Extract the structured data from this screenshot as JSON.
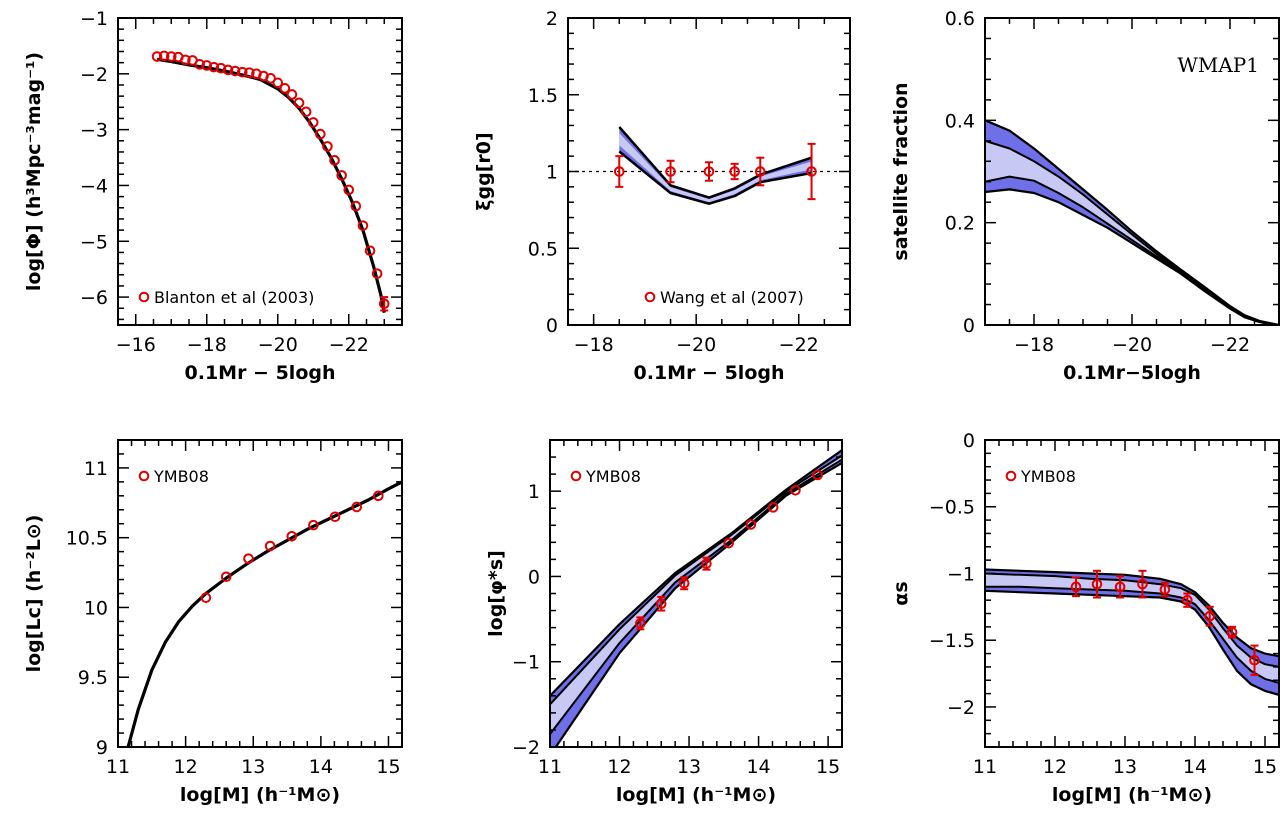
{
  "colors": {
    "band_outer": "#6f6fe8",
    "band_inner": "#c8c8f5",
    "curve": "#000000",
    "points": "#e00000"
  },
  "chart_data": [
    {
      "type": "line",
      "panel": "luminosity-function",
      "xlabel": "0.1Mr − 5logh",
      "ylabel": "log[Φ] (h³Mpc⁻³mag⁻¹)",
      "xlim": [
        -15.5,
        -23.5
      ],
      "ylim": [
        -6.5,
        -1
      ],
      "xticks": [
        -16,
        -18,
        -20,
        -22
      ],
      "xtick_labels": [
        "−16",
        "−18",
        "−20",
        "−22"
      ],
      "yticks": [
        -1,
        -2,
        -3,
        -4,
        -5,
        -6
      ],
      "ytick_labels": [
        "−1",
        "−2",
        "−3",
        "−4",
        "−5",
        "−6"
      ],
      "legend": "Blanton et al (2003)",
      "legend_position": "bottom-left",
      "model": {
        "x": [
          -16.6,
          -17.0,
          -17.5,
          -18.0,
          -18.5,
          -19.0,
          -19.5,
          -20.0,
          -20.3,
          -20.6,
          -20.9,
          -21.2,
          -21.5,
          -21.8,
          -22.1,
          -22.4,
          -22.7,
          -22.9,
          -23.0
        ],
        "y": [
          -1.74,
          -1.78,
          -1.84,
          -1.89,
          -1.95,
          -2.02,
          -2.1,
          -2.27,
          -2.42,
          -2.62,
          -2.87,
          -3.17,
          -3.5,
          -3.88,
          -4.3,
          -4.8,
          -5.45,
          -5.95,
          -6.28
        ]
      },
      "points": {
        "x": [
          -16.6,
          -16.8,
          -17.0,
          -17.2,
          -17.4,
          -17.6,
          -17.8,
          -18.0,
          -18.2,
          -18.4,
          -18.6,
          -18.8,
          -19.0,
          -19.2,
          -19.4,
          -19.6,
          -19.8,
          -20.0,
          -20.2,
          -20.4,
          -20.6,
          -20.8,
          -21.0,
          -21.2,
          -21.4,
          -21.6,
          -21.8,
          -22.0,
          -22.2,
          -22.4,
          -22.6,
          -22.8,
          -23.0
        ],
        "y": [
          -1.69,
          -1.68,
          -1.69,
          -1.7,
          -1.75,
          -1.76,
          -1.83,
          -1.85,
          -1.88,
          -1.9,
          -1.93,
          -1.95,
          -1.97,
          -1.98,
          -2.0,
          -2.04,
          -2.08,
          -2.16,
          -2.26,
          -2.37,
          -2.52,
          -2.68,
          -2.87,
          -3.08,
          -3.3,
          -3.55,
          -3.82,
          -4.08,
          -4.37,
          -4.72,
          -5.17,
          -5.58,
          -6.12
        ],
        "err": [
          0.03,
          0.03,
          0.03,
          0.03,
          0.03,
          0.03,
          0.03,
          0.03,
          0.03,
          0.03,
          0.03,
          0.03,
          0.03,
          0.03,
          0.03,
          0.03,
          0.03,
          0.03,
          0.03,
          0.03,
          0.03,
          0.03,
          0.03,
          0.03,
          0.03,
          0.03,
          0.03,
          0.04,
          0.04,
          0.05,
          0.06,
          0.08,
          0.12
        ]
      }
    },
    {
      "type": "line",
      "panel": "correlation-ratio",
      "xlabel": "0.1Mr − 5logh",
      "ylabel": "ξgg[r0]",
      "xlim": [
        -17.5,
        -23
      ],
      "ylim": [
        0,
        2
      ],
      "xticks": [
        -18,
        -20,
        -22
      ],
      "xtick_labels": [
        "−18",
        "−20",
        "−22"
      ],
      "yticks": [
        0,
        0.5,
        1,
        1.5,
        2
      ],
      "ytick_labels": [
        "0",
        "0.5",
        "1",
        "1.5",
        "2"
      ],
      "reference_line": 1,
      "legend": "Wang et al (2007)",
      "legend_position": "bottom-right",
      "band": {
        "x": [
          -18.5,
          -19.5,
          -20.25,
          -20.75,
          -21.25,
          -22.25
        ],
        "lo": [
          1.13,
          0.86,
          0.79,
          0.84,
          0.93,
          0.99
        ],
        "hi": [
          1.29,
          0.91,
          0.83,
          0.89,
          0.98,
          1.09
        ],
        "mid": [
          1.21,
          0.88,
          0.81,
          0.865,
          0.955,
          1.04
        ]
      },
      "points": {
        "x": [
          -18.5,
          -19.5,
          -20.25,
          -20.75,
          -21.25,
          -22.25
        ],
        "y": [
          1.0,
          1.0,
          1.0,
          1.0,
          1.0,
          1.0
        ],
        "err": [
          0.1,
          0.07,
          0.06,
          0.05,
          0.09,
          0.18
        ]
      }
    },
    {
      "type": "area",
      "panel": "satellite-fraction",
      "title": "WMAP1",
      "xlabel": "0.1Mr−5logh",
      "ylabel": "satellite fraction",
      "xlim": [
        -17,
        -23
      ],
      "ylim": [
        0,
        0.6
      ],
      "xticks": [
        -18,
        -20,
        -22
      ],
      "xtick_labels": [
        "−18",
        "−20",
        "−22"
      ],
      "yticks": [
        0,
        0.2,
        0.4,
        0.6
      ],
      "ytick_labels": [
        "0",
        "0.2",
        "0.4",
        "0.6"
      ],
      "band": {
        "x": [
          -17.0,
          -17.5,
          -18.0,
          -18.5,
          -19.0,
          -19.5,
          -20.0,
          -20.5,
          -21.0,
          -21.5,
          -22.0,
          -22.3,
          -22.6,
          -22.8,
          -23.0
        ],
        "lo": [
          0.26,
          0.265,
          0.258,
          0.24,
          0.215,
          0.19,
          0.16,
          0.13,
          0.1,
          0.065,
          0.032,
          0.015,
          0.006,
          0.002,
          0.0
        ],
        "mid_lo": [
          0.28,
          0.29,
          0.282,
          0.258,
          0.23,
          0.198,
          0.166,
          0.134,
          0.102,
          0.068,
          0.034,
          0.016,
          0.007,
          0.003,
          0.0
        ],
        "mid_hi": [
          0.36,
          0.345,
          0.32,
          0.29,
          0.255,
          0.216,
          0.177,
          0.139,
          0.105,
          0.07,
          0.035,
          0.017,
          0.007,
          0.003,
          0.0
        ],
        "hi": [
          0.4,
          0.38,
          0.345,
          0.305,
          0.265,
          0.225,
          0.183,
          0.144,
          0.108,
          0.073,
          0.037,
          0.019,
          0.008,
          0.004,
          0.0
        ]
      }
    },
    {
      "type": "line",
      "panel": "central-luminosity",
      "xlabel": "log[M] (h⁻¹M⊙)",
      "ylabel": "log[Lc] (h⁻²L⊙)",
      "xlim": [
        11,
        15.2
      ],
      "ylim": [
        9,
        11.2
      ],
      "xticks": [
        11,
        12,
        13,
        14,
        15
      ],
      "xtick_labels": [
        "11",
        "12",
        "13",
        "14",
        "15"
      ],
      "yticks": [
        9,
        9.5,
        10,
        10.5,
        11
      ],
      "ytick_labels": [
        "9",
        "9.5",
        "10",
        "10.5",
        "11"
      ],
      "legend": "YMB08",
      "legend_position": "top-left",
      "model": {
        "x": [
          11.15,
          11.3,
          11.5,
          11.7,
          11.9,
          12.1,
          12.3,
          12.6,
          12.9,
          13.2,
          13.5,
          13.8,
          14.1,
          14.4,
          14.7,
          15.0,
          15.2
        ],
        "y": [
          9.0,
          9.27,
          9.55,
          9.75,
          9.9,
          10.01,
          10.1,
          10.21,
          10.31,
          10.4,
          10.48,
          10.56,
          10.63,
          10.7,
          10.77,
          10.85,
          10.9
        ]
      },
      "points": {
        "x": [
          12.3,
          12.6,
          12.93,
          13.25,
          13.57,
          13.89,
          14.21,
          14.53,
          14.85
        ],
        "y": [
          10.07,
          10.22,
          10.35,
          10.44,
          10.51,
          10.59,
          10.65,
          10.72,
          10.8
        ],
        "err": [
          0.01,
          0.01,
          0.01,
          0.01,
          0.01,
          0.01,
          0.02,
          0.02,
          0.02
        ]
      }
    },
    {
      "type": "area",
      "panel": "satellite-normalization",
      "xlabel": "log[M] (h⁻¹M⊙)",
      "ylabel": "log[φ*s]",
      "xlim": [
        11,
        15.2
      ],
      "ylim": [
        -2,
        1.6
      ],
      "xticks": [
        11,
        12,
        13,
        14,
        15
      ],
      "xtick_labels": [
        "11",
        "12",
        "13",
        "14",
        "15"
      ],
      "yticks": [
        -2,
        -1,
        0,
        1
      ],
      "ytick_labels": [
        "−2",
        "−1",
        "0",
        "1"
      ],
      "legend": "YMB08",
      "legend_position": "top-left",
      "band": {
        "x": [
          11.0,
          12.0,
          12.8,
          13.6,
          14.4,
          15.2
        ],
        "lo": [
          -2.1,
          -0.9,
          -0.14,
          0.39,
          0.95,
          1.33
        ],
        "mid_lo": [
          -1.85,
          -0.78,
          -0.07,
          0.42,
          0.97,
          1.37
        ],
        "mid_hi": [
          -1.5,
          -0.62,
          0.01,
          0.48,
          1.0,
          1.42
        ],
        "hi": [
          -1.4,
          -0.56,
          0.04,
          0.5,
          1.02,
          1.48
        ]
      },
      "points": {
        "x": [
          12.3,
          12.6,
          12.93,
          13.25,
          13.57,
          13.89,
          14.21,
          14.53,
          14.85
        ],
        "y": [
          -0.55,
          -0.32,
          -0.08,
          0.15,
          0.39,
          0.61,
          0.81,
          1.01,
          1.19
        ],
        "err": [
          0.07,
          0.08,
          0.07,
          0.07,
          0.04,
          0.03,
          0.03,
          0.03,
          0.03
        ]
      }
    },
    {
      "type": "area",
      "panel": "satellite-slope",
      "xlabel": "log[M] (h⁻¹M⊙)",
      "ylabel": "αs",
      "xlim": [
        11,
        15.2
      ],
      "ylim": [
        -2.3,
        0
      ],
      "xticks": [
        11,
        12,
        13,
        14,
        15
      ],
      "xtick_labels": [
        "11",
        "12",
        "13",
        "14",
        "15"
      ],
      "yticks": [
        0,
        -0.5,
        -1,
        -1.5,
        -2
      ],
      "ytick_labels": [
        "0",
        "−0.5",
        "−1",
        "−1.5",
        "−2"
      ],
      "legend": "YMB08",
      "legend_position": "top-left",
      "band": {
        "x": [
          11.0,
          11.5,
          12.0,
          12.5,
          13.0,
          13.5,
          13.8,
          14.0,
          14.2,
          14.4,
          14.6,
          14.8,
          15.0,
          15.2
        ],
        "lo": [
          -1.13,
          -1.14,
          -1.15,
          -1.16,
          -1.17,
          -1.18,
          -1.21,
          -1.27,
          -1.4,
          -1.57,
          -1.73,
          -1.83,
          -1.88,
          -1.91
        ],
        "mid_lo": [
          -1.1,
          -1.1,
          -1.11,
          -1.12,
          -1.13,
          -1.15,
          -1.18,
          -1.23,
          -1.35,
          -1.49,
          -1.63,
          -1.73,
          -1.79,
          -1.82
        ],
        "mid_hi": [
          -1.0,
          -1.01,
          -1.02,
          -1.04,
          -1.05,
          -1.08,
          -1.11,
          -1.16,
          -1.27,
          -1.41,
          -1.54,
          -1.63,
          -1.68,
          -1.7
        ],
        "hi": [
          -0.97,
          -0.98,
          -0.99,
          -1.0,
          -1.01,
          -1.04,
          -1.08,
          -1.14,
          -1.24,
          -1.37,
          -1.48,
          -1.56,
          -1.6,
          -1.62
        ]
      },
      "points": {
        "x": [
          12.3,
          12.6,
          12.93,
          13.25,
          13.57,
          13.89,
          14.21,
          14.53,
          14.85
        ],
        "y": [
          -1.1,
          -1.08,
          -1.1,
          -1.08,
          -1.12,
          -1.2,
          -1.32,
          -1.44,
          -1.65
        ],
        "err": [
          0.07,
          0.1,
          0.08,
          0.1,
          0.05,
          0.05,
          0.07,
          0.04,
          0.11
        ]
      }
    }
  ]
}
